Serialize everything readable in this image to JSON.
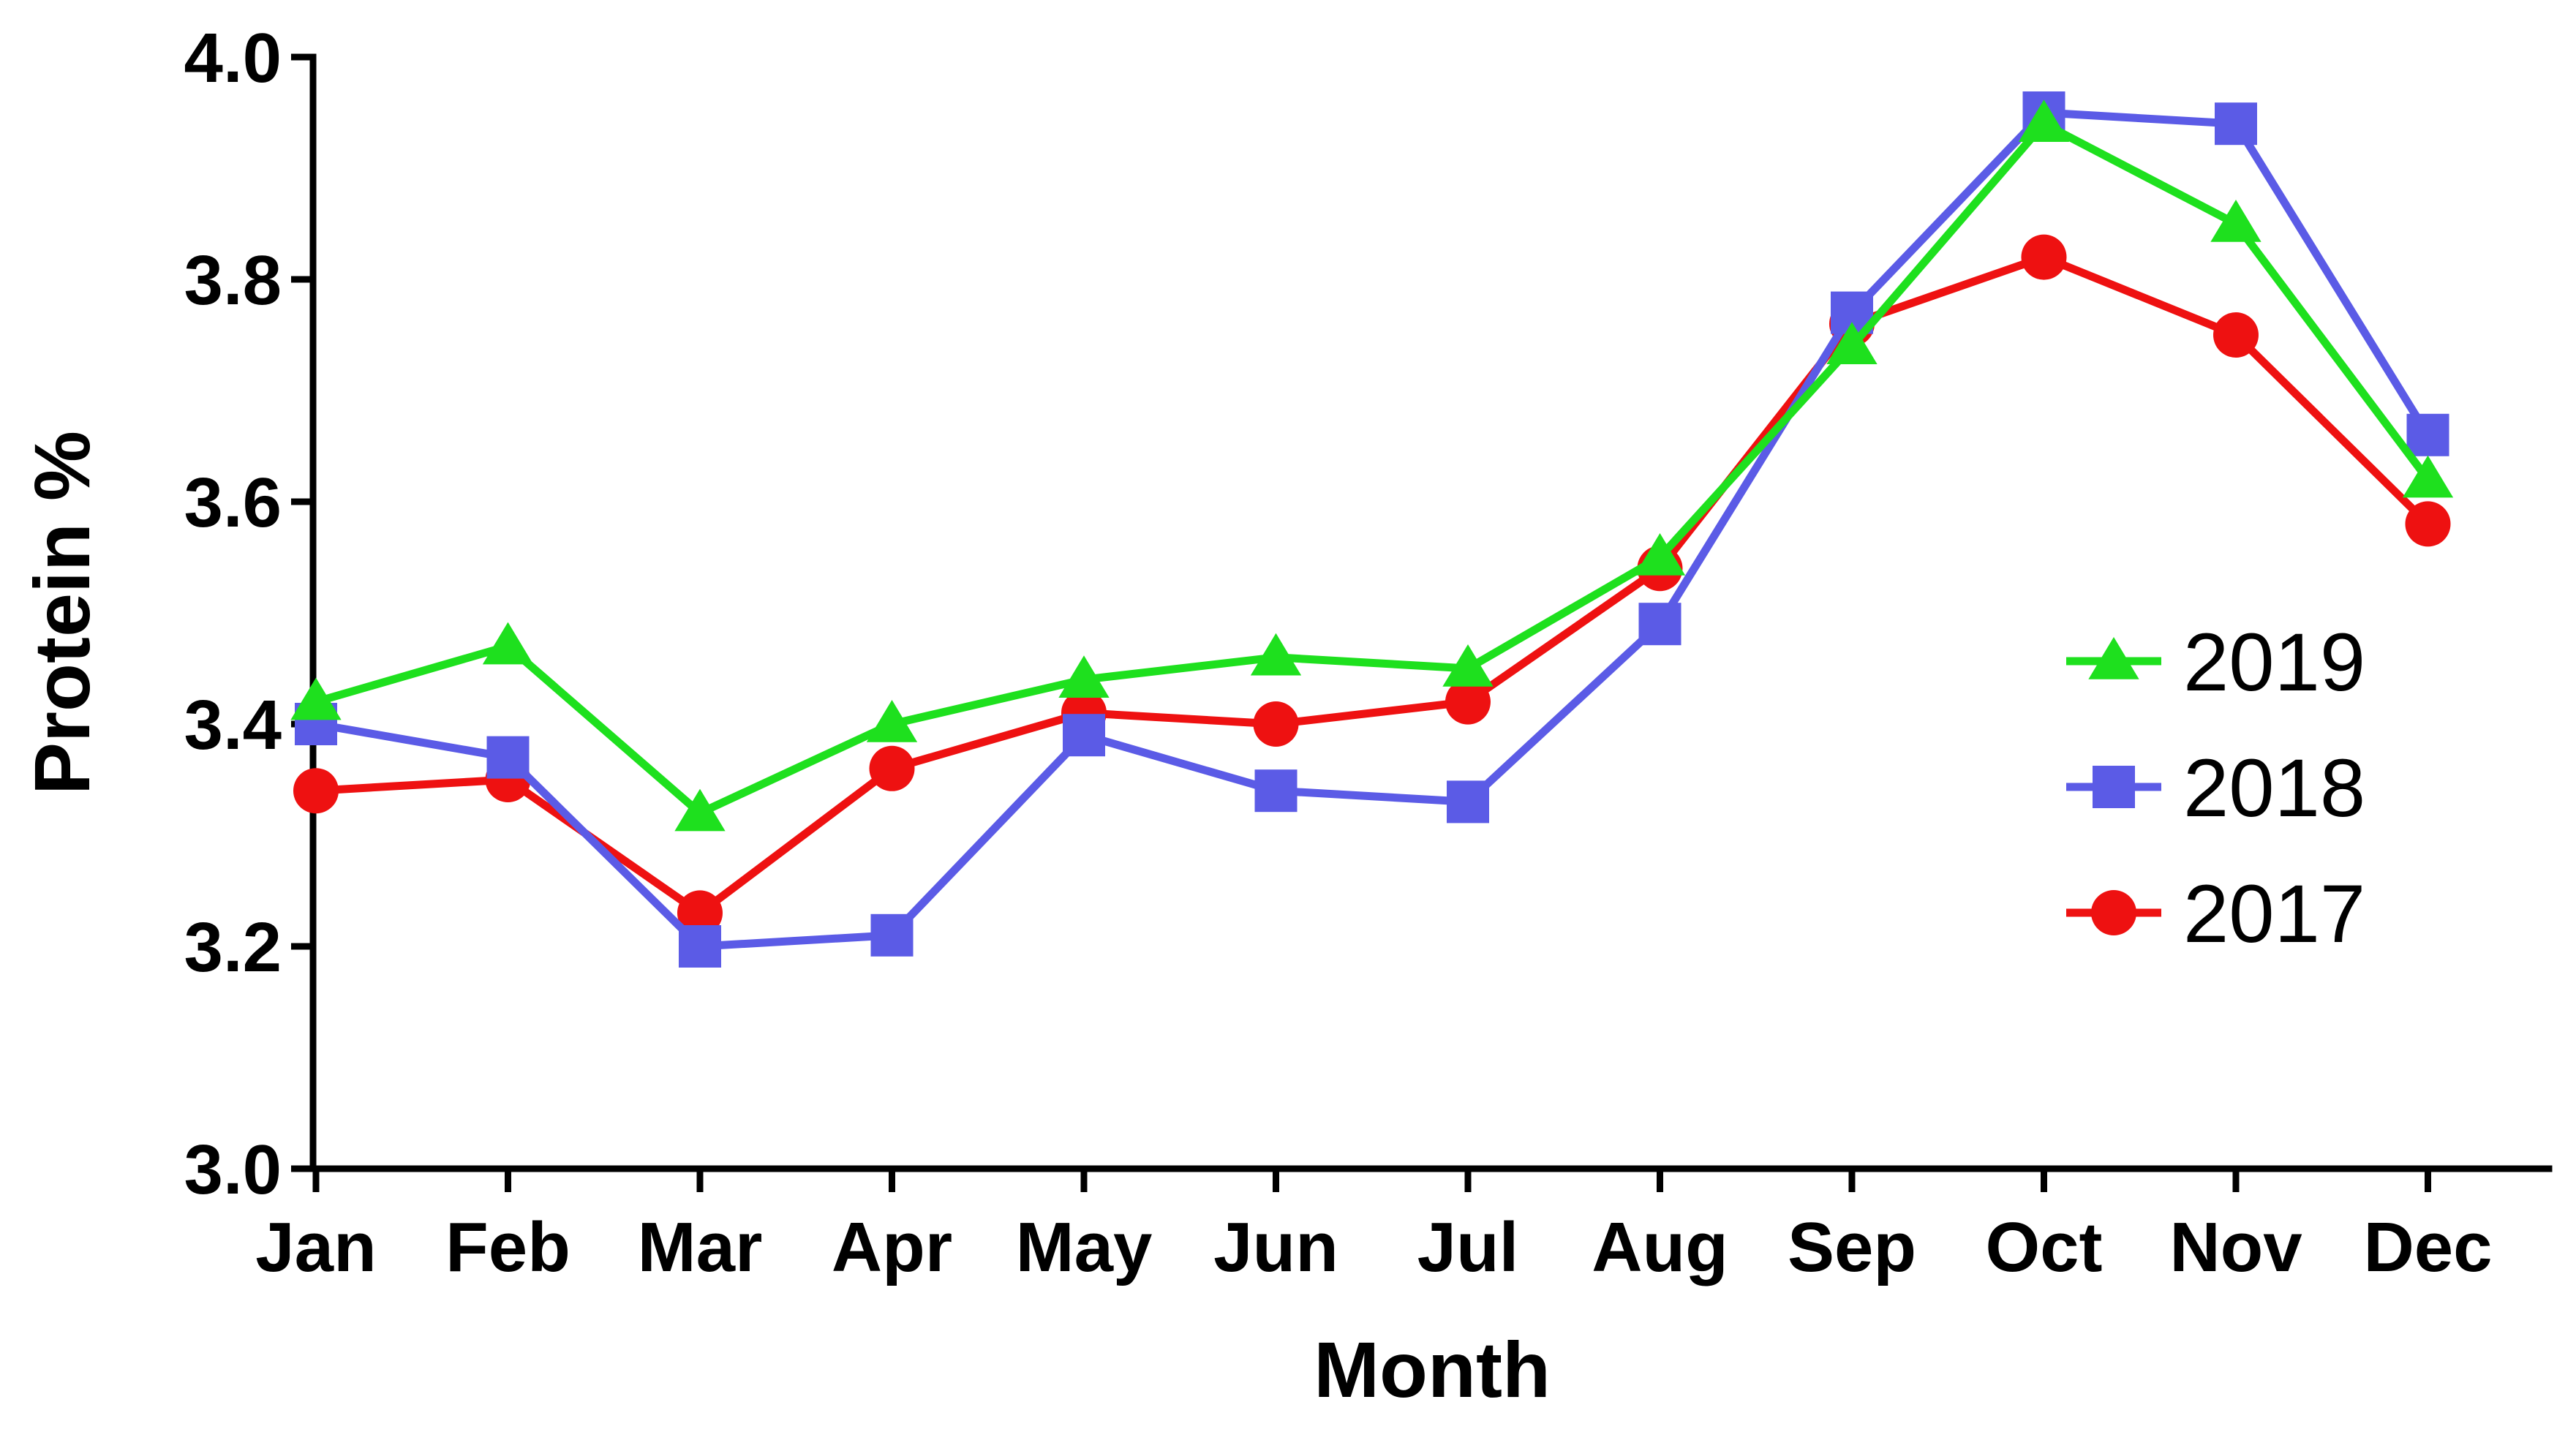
{
  "chart_data": {
    "type": "line",
    "title": "",
    "xlabel": "Month",
    "ylabel": "Protein %",
    "categories": [
      "Jan",
      "Feb",
      "Mar",
      "Apr",
      "May",
      "Jun",
      "Jul",
      "Aug",
      "Sep",
      "Oct",
      "Nov",
      "Dec"
    ],
    "ylim": [
      3.0,
      4.0
    ],
    "yticks": [
      "3.0",
      "3.2",
      "3.4",
      "3.6",
      "3.8",
      "4.0"
    ],
    "grid": false,
    "legend_position": "right",
    "series": [
      {
        "name": "2019",
        "color": "#1ee01e",
        "marker": "triangle",
        "values": [
          3.42,
          3.47,
          3.32,
          3.4,
          3.44,
          3.46,
          3.45,
          3.55,
          3.74,
          3.94,
          3.85,
          3.62
        ]
      },
      {
        "name": "2018",
        "color": "#5b5be6",
        "marker": "square",
        "values": [
          3.4,
          3.37,
          3.2,
          3.21,
          3.39,
          3.34,
          3.33,
          3.49,
          3.77,
          3.95,
          3.94,
          3.66
        ]
      },
      {
        "name": "2017",
        "color": "#ee1111",
        "marker": "circle",
        "values": [
          3.34,
          3.35,
          3.23,
          3.36,
          3.41,
          3.4,
          3.42,
          3.54,
          3.76,
          3.82,
          3.75,
          3.58
        ]
      }
    ]
  }
}
